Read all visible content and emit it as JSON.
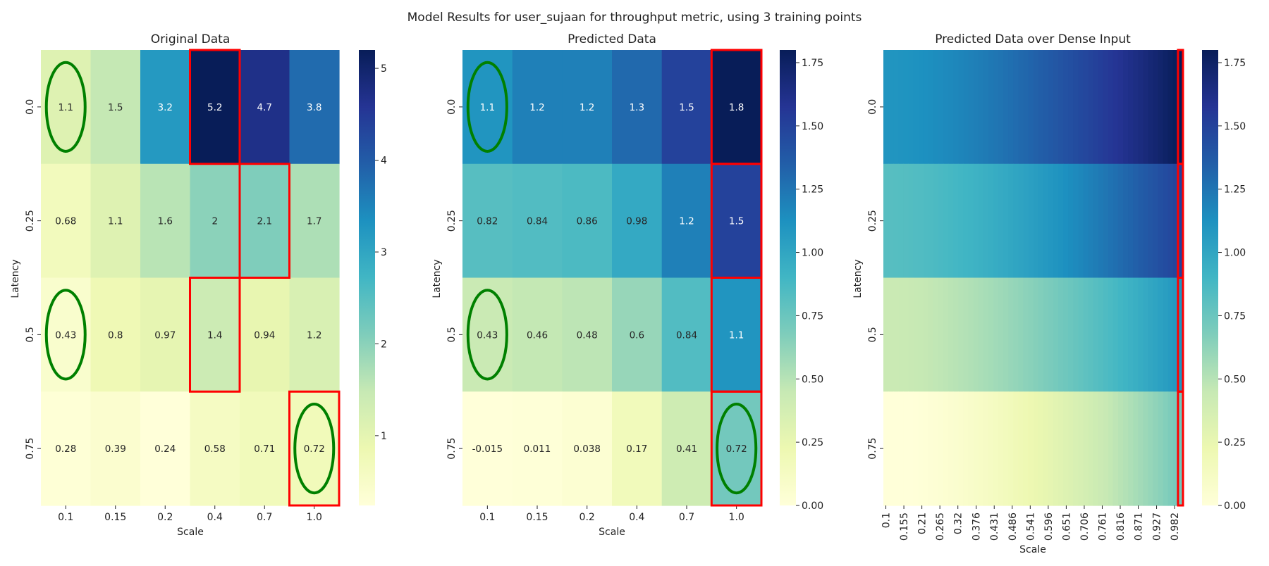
{
  "title": "Model Results for user_sujaan for throughput metric, using 3 training points",
  "colormap": [
    "#ffffd9",
    "#edf8b1",
    "#c7e9b4",
    "#7fcdbb",
    "#41b6c4",
    "#1d91c0",
    "#225ea8",
    "#253494",
    "#081d58"
  ],
  "highlight_colors": {
    "train_ellipse": "#008000",
    "box": "#ff0000"
  },
  "chart_data": [
    {
      "type": "heatmap",
      "title": "Original Data",
      "xlabel": "Scale",
      "ylabel": "Latency",
      "x": [
        "0.1",
        "0.15",
        "0.2",
        "0.4",
        "0.7",
        "1.0"
      ],
      "y": [
        "0.0",
        "0.25",
        "0.5",
        "0.75"
      ],
      "values": [
        [
          1.1,
          1.5,
          3.2,
          5.2,
          4.7,
          3.8
        ],
        [
          0.68,
          1.1,
          1.6,
          2,
          2.1,
          1.7
        ],
        [
          0.43,
          0.8,
          0.97,
          1.4,
          0.94,
          1.2
        ],
        [
          0.28,
          0.39,
          0.24,
          0.58,
          0.71,
          0.72
        ]
      ],
      "annotations": [
        [
          "1.1",
          "1.5",
          "3.2",
          "5.2",
          "4.7",
          "3.8"
        ],
        [
          "0.68",
          "1.1",
          "1.6",
          "2",
          "2.1",
          "1.7"
        ],
        [
          "0.43",
          "0.8",
          "0.97",
          "1.4",
          "0.94",
          "1.2"
        ],
        [
          "0.28",
          "0.39",
          "0.24",
          "0.58",
          "0.71",
          "0.72"
        ]
      ],
      "colorbar": {
        "range": [
          0.24,
          5.2
        ],
        "ticks": [
          1,
          2,
          3,
          4,
          5
        ]
      },
      "training_points": [
        [
          0,
          0
        ],
        [
          2,
          0
        ],
        [
          3,
          5
        ]
      ],
      "red_boxes": [
        [
          0,
          3
        ],
        [
          1,
          4
        ],
        [
          2,
          3
        ],
        [
          3,
          5
        ]
      ]
    },
    {
      "type": "heatmap",
      "title": "Predicted Data",
      "xlabel": "Scale",
      "ylabel": "Latency",
      "x": [
        "0.1",
        "0.15",
        "0.2",
        "0.4",
        "0.7",
        "1.0"
      ],
      "y": [
        "0.0",
        "0.25",
        "0.5",
        "0.75"
      ],
      "values": [
        [
          1.1,
          1.2,
          1.2,
          1.3,
          1.5,
          1.8
        ],
        [
          0.82,
          0.84,
          0.86,
          0.98,
          1.2,
          1.5
        ],
        [
          0.43,
          0.46,
          0.48,
          0.6,
          0.84,
          1.1
        ],
        [
          -0.015,
          0.011,
          0.038,
          0.17,
          0.41,
          0.72
        ]
      ],
      "annotations": [
        [
          "1.1",
          "1.2",
          "1.2",
          "1.3",
          "1.5",
          "1.8"
        ],
        [
          "0.82",
          "0.84",
          "0.86",
          "0.98",
          "1.2",
          "1.5"
        ],
        [
          "0.43",
          "0.46",
          "0.48",
          "0.6",
          "0.84",
          "1.1"
        ],
        [
          "-0.015",
          "0.011",
          "0.038",
          "0.17",
          "0.41",
          "0.72"
        ]
      ],
      "colorbar": {
        "range": [
          0,
          1.8
        ],
        "ticks": [
          "0.00",
          "0.25",
          "0.50",
          "0.75",
          "1.00",
          "1.25",
          "1.50",
          "1.75"
        ]
      },
      "training_points": [
        [
          0,
          0
        ],
        [
          2,
          0
        ],
        [
          3,
          5
        ]
      ],
      "red_boxes": [
        [
          0,
          5
        ],
        [
          1,
          5
        ],
        [
          2,
          5
        ],
        [
          3,
          5
        ]
      ]
    },
    {
      "type": "heatmap",
      "title": "Predicted Data over Dense Input",
      "xlabel": "Scale",
      "ylabel": "Latency",
      "x": [
        "0.1",
        "0.155",
        "0.21",
        "0.265",
        "0.32",
        "0.376",
        "0.431",
        "0.486",
        "0.541",
        "0.596",
        "0.651",
        "0.706",
        "0.761",
        "0.816",
        "0.871",
        "0.927",
        "0.982"
      ],
      "x_range": [
        0.1,
        1.0
      ],
      "dense_columns": 60,
      "y": [
        "0.0",
        "0.25",
        "0.5",
        "0.75"
      ],
      "rows": [
        {
          "latency": 0.0,
          "start": 1.1,
          "end": 1.8
        },
        {
          "latency": 0.25,
          "start": 0.82,
          "end": 1.5
        },
        {
          "latency": 0.5,
          "start": 0.43,
          "end": 1.1
        },
        {
          "latency": 0.75,
          "start": -0.015,
          "end": 0.72
        }
      ],
      "colorbar": {
        "range": [
          0,
          1.8
        ],
        "ticks": [
          "0.00",
          "0.25",
          "0.50",
          "0.75",
          "1.00",
          "1.25",
          "1.50",
          "1.75"
        ]
      },
      "red_boxes_last_column": [
        0,
        1,
        2,
        3
      ]
    }
  ]
}
